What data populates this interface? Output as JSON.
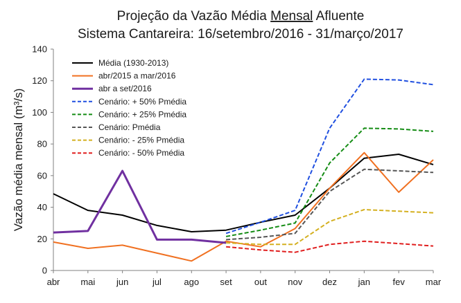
{
  "chart_data": {
    "type": "line",
    "title_line1_before": "Projeção da Vazão Média ",
    "title_line1_underlined": "Mensal",
    "title_line1_after": " Afluente",
    "title_line2": "Sistema Cantareira: 16/setembro/2016 - 31/março/2017",
    "ylabel": "Vazão média mensal (m³/s)",
    "xlabel": "",
    "categories": [
      "abr",
      "mai",
      "jun",
      "jul",
      "ago",
      "set",
      "out",
      "nov",
      "dez",
      "jan",
      "fev",
      "mar"
    ],
    "ylim": [
      0,
      140
    ],
    "yticks": [
      0,
      20,
      40,
      60,
      80,
      100,
      120,
      140
    ],
    "grid": false,
    "legend_position": "top-left",
    "series": [
      {
        "name": "Média (1930-2013)",
        "color": "#000000",
        "dash": "solid",
        "width": 2,
        "values": [
          48.5,
          38,
          35,
          28.5,
          24.5,
          25.5,
          30.5,
          35,
          52,
          71,
          73.5,
          67
        ]
      },
      {
        "name": "abr/2015 a mar/2016",
        "color": "#f07020",
        "dash": "solid",
        "width": 2,
        "values": [
          18,
          14,
          16,
          11,
          6,
          18.5,
          15,
          26.5,
          52,
          74.5,
          49.5,
          70
        ]
      },
      {
        "name": "abr a set/2016",
        "color": "#7030a0",
        "dash": "solid",
        "width": 3,
        "values": [
          24,
          25,
          63,
          19.5,
          19.5,
          17.5,
          null,
          null,
          null,
          null,
          null,
          null
        ]
      },
      {
        "name": "Cenário: + 50% Pmédia",
        "color": "#1f4fe0",
        "dash": "dashed",
        "width": 2,
        "values": [
          null,
          null,
          null,
          null,
          null,
          23.5,
          30.5,
          38,
          90,
          121,
          120.5,
          117.5
        ]
      },
      {
        "name": "Cenário: + 25% Pmédia",
        "color": "#148c14",
        "dash": "dashed",
        "width": 2,
        "values": [
          null,
          null,
          null,
          null,
          null,
          21.5,
          25.5,
          30,
          68,
          90,
          89.5,
          88
        ]
      },
      {
        "name": "Cenário: Pmédia",
        "color": "#555555",
        "dash": "dashed",
        "width": 2,
        "values": [
          null,
          null,
          null,
          null,
          null,
          19.5,
          21,
          23.5,
          50,
          64,
          63,
          62
        ]
      },
      {
        "name": "Cenário: - 25% Pmédia",
        "color": "#d4b020",
        "dash": "dashed",
        "width": 2,
        "values": [
          null,
          null,
          null,
          null,
          null,
          17.5,
          16.5,
          16.5,
          31,
          38.5,
          37.5,
          36.5
        ]
      },
      {
        "name": "Cenário: - 50% Pmédia",
        "color": "#e01e1e",
        "dash": "dashed",
        "width": 2,
        "values": [
          null,
          null,
          null,
          null,
          null,
          15,
          13,
          11.5,
          16.5,
          18.5,
          17,
          15.5
        ]
      }
    ]
  }
}
